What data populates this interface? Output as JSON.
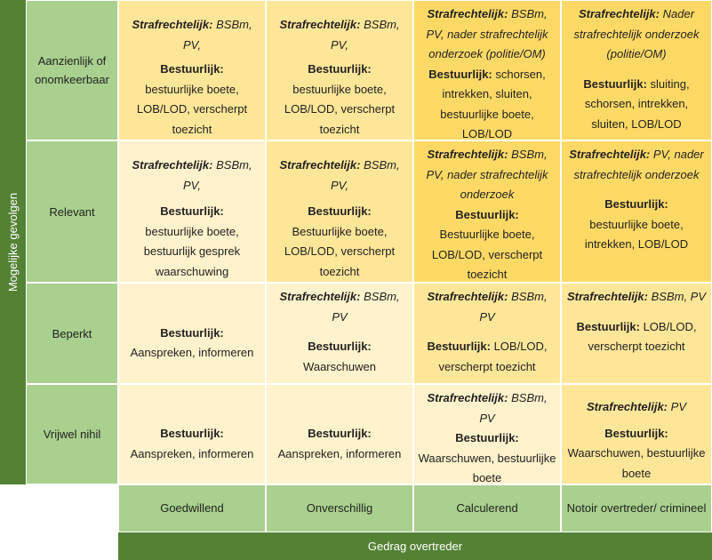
{
  "y_axis_label": "Mogelijke gevolgen",
  "x_axis_label": "Gedrag overtreder",
  "rows": [
    "Aanzienlijk of onomkeerbaar",
    "Relevant",
    "Beperkt",
    "Vrijwel nihil"
  ],
  "columns": [
    "Goedwillend",
    "Onverschillig",
    "Calculerend",
    "Notoir overtreder/ crimineel"
  ],
  "strafrechtelijk_label": "Strafrechtelijk:",
  "bestuurlijk_label": "Bestuurlijk:",
  "colors": {
    "axis_dark_green": "#548235",
    "label_light_green": "#a9d08e",
    "cell_light": "#fff2cc",
    "cell_mid": "#ffe699",
    "cell_strong": "#ffd966"
  },
  "cells": [
    [
      {
        "strafrechtelijk": " BSBm, PV,",
        "bestuurlijk": "bestuurlijke boete, LOB/LOD, verscherpt toezicht"
      },
      {
        "strafrechtelijk": " BSBm, PV,",
        "bestuurlijk": "bestuurlijke boete, LOB/LOD, verscherpt toezicht"
      },
      {
        "strafrechtelijk": " BSBm, PV, nader strafrechtelijk onderzoek (politie/OM)",
        "bestuurlijk": " schorsen, intrekken, sluiten, bestuurlijke boete, LOB/LOD"
      },
      {
        "strafrechtelijk": " Nader strafrechtelijk onderzoek (politie/OM)",
        "bestuurlijk": " sluiting, schorsen, intrekken, sluiten, LOB/LOD"
      }
    ],
    [
      {
        "strafrechtelijk": " BSBm, PV,",
        "bestuurlijk": "bestuurlijke boete, bestuurlijk gesprek waarschuwing"
      },
      {
        "strafrechtelijk": " BSBm, PV,",
        "bestuurlijk": "Bestuurlijke boete, LOB/LOD, verscherpt toezicht"
      },
      {
        "strafrechtelijk": " BSBm, PV, nader strafrechtelijk onderzoek",
        "bestuurlijk": "Bestuurlijke boete, LOB/LOD, verscherpt toezicht"
      },
      {
        "strafrechtelijk": " PV, nader strafrechtelijk onderzoek",
        "bestuurlijk": "bestuurlijke boete, intrekken, LOB/LOD"
      }
    ],
    [
      {
        "strafrechtelijk": "",
        "bestuurlijk": "Aanspreken, informeren"
      },
      {
        "strafrechtelijk": " BSBm, PV",
        "bestuurlijk": "Waarschuwen"
      },
      {
        "strafrechtelijk": " BSBm, PV",
        "bestuurlijk": " LOB/LOD, verscherpt toezicht"
      },
      {
        "strafrechtelijk": " BSBm, PV",
        "bestuurlijk": " LOB/LOD, verscherpt toezicht"
      }
    ],
    [
      {
        "strafrechtelijk": "",
        "bestuurlijk": "Aanspreken, informeren"
      },
      {
        "strafrechtelijk": "",
        "bestuurlijk": "Aanspreken, informeren"
      },
      {
        "strafrechtelijk": " BSBm, PV",
        "bestuurlijk": "Waarschuwen, bestuurlijke boete"
      },
      {
        "strafrechtelijk": " PV",
        "bestuurlijk": "Waarschuwen, bestuurlijke boete"
      }
    ]
  ]
}
